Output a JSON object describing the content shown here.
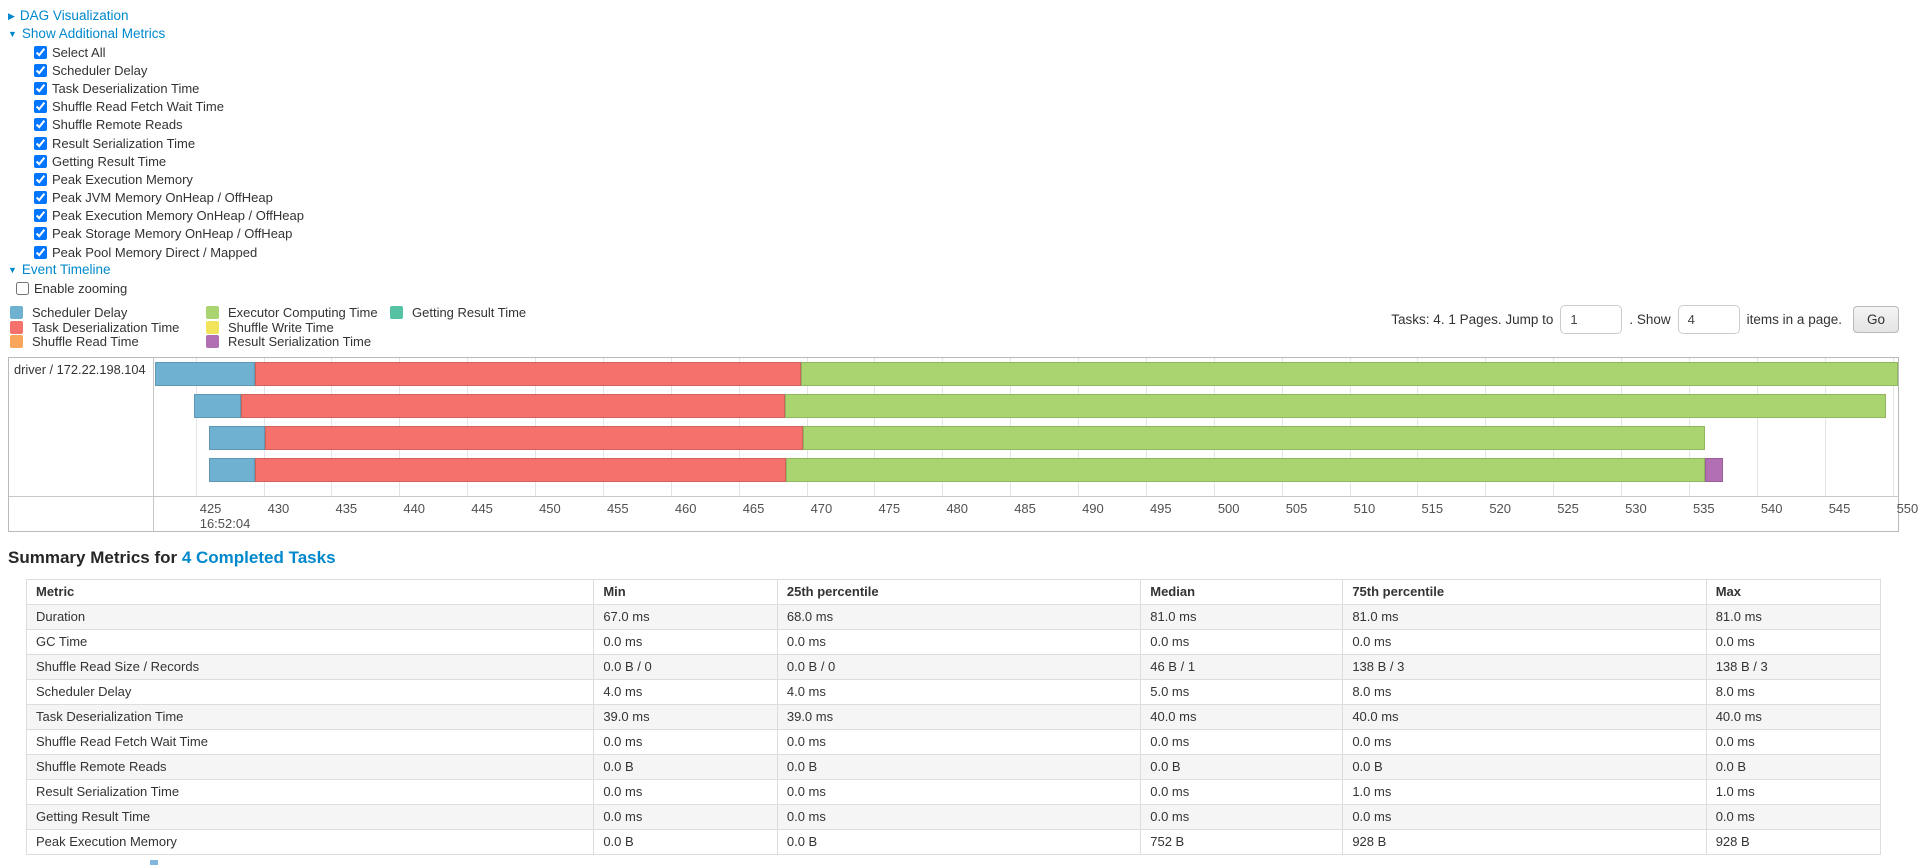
{
  "links": {
    "dag": "DAG Visualization",
    "metrics": "Show Additional Metrics",
    "timeline": "Event Timeline",
    "enable_zooming": "Enable zooming"
  },
  "additional_metrics": [
    "Select All",
    "Scheduler Delay",
    "Task Deserialization Time",
    "Shuffle Read Fetch Wait Time",
    "Shuffle Remote Reads",
    "Result Serialization Time",
    "Getting Result Time",
    "Peak Execution Memory",
    "Peak JVM Memory OnHeap / OffHeap",
    "Peak Execution Memory OnHeap / OffHeap",
    "Peak Storage Memory OnHeap / OffHeap",
    "Peak Pool Memory Direct / Mapped"
  ],
  "pagination": {
    "tasks_text": "Tasks: 4. 1 Pages. Jump to",
    "jump_value": "1",
    "mid_text": ". Show",
    "show_value": "4",
    "suffix_text": "items in a page.",
    "go_label": "Go"
  },
  "timeline": {
    "group_label": "driver / 172.22.198.104",
    "colors": {
      "scheduler_delay": "#6FB1D0",
      "task_deserialization": "#F4726B",
      "shuffle_read": "#F9A65C",
      "executor_computing": "#A9D470",
      "shuffle_write": "#F1E45B",
      "getting_result": "#56C2A4",
      "result_serialization": "#B36FB3"
    },
    "legend_columns": [
      [
        {
          "label": "Scheduler Delay",
          "type": "scheduler_delay"
        },
        {
          "label": "Task Deserialization Time",
          "type": "task_deserialization"
        },
        {
          "label": "Shuffle Read Time",
          "type": "shuffle_read"
        }
      ],
      [
        {
          "label": "Executor Computing Time",
          "type": "executor_computing"
        },
        {
          "label": "Shuffle Write Time",
          "type": "shuffle_write"
        },
        {
          "label": "Result Serialization Time",
          "type": "result_serialization"
        }
      ],
      [
        {
          "label": "Getting Result Time",
          "type": "getting_result"
        }
      ]
    ],
    "axis": {
      "min": 422.0,
      "max": 550.4,
      "ticks": [
        425,
        430,
        435,
        440,
        445,
        450,
        455,
        460,
        465,
        470,
        475,
        480,
        485,
        490,
        495,
        500,
        505,
        510,
        515,
        520,
        525,
        530,
        535,
        540,
        545,
        550
      ],
      "start_time_label": "16:52:04"
    },
    "bars": [
      {
        "segments": [
          {
            "type": "scheduler_delay",
            "start": 422.0,
            "end": 429.4
          },
          {
            "type": "task_deserialization",
            "start": 429.4,
            "end": 469.6
          },
          {
            "type": "executor_computing",
            "start": 469.6,
            "end": 550.4
          }
        ]
      },
      {
        "segments": [
          {
            "type": "scheduler_delay",
            "start": 424.9,
            "end": 428.3
          },
          {
            "type": "task_deserialization",
            "start": 428.3,
            "end": 468.4
          },
          {
            "type": "executor_computing",
            "start": 468.4,
            "end": 549.5
          }
        ]
      },
      {
        "segments": [
          {
            "type": "scheduler_delay",
            "start": 426.0,
            "end": 430.1
          },
          {
            "type": "task_deserialization",
            "start": 430.1,
            "end": 469.7
          },
          {
            "type": "executor_computing",
            "start": 469.7,
            "end": 536.2
          }
        ]
      },
      {
        "segments": [
          {
            "type": "scheduler_delay",
            "start": 426.0,
            "end": 429.4
          },
          {
            "type": "task_deserialization",
            "start": 429.4,
            "end": 468.5
          },
          {
            "type": "executor_computing",
            "start": 468.5,
            "end": 536.2
          },
          {
            "type": "result_serialization",
            "start": 536.2,
            "end": 537.5
          }
        ]
      }
    ]
  },
  "summary": {
    "title_prefix": "Summary Metrics for ",
    "title_link": "4 Completed Tasks",
    "columns": [
      "Metric",
      "Min",
      "25th percentile",
      "Median",
      "75th percentile",
      "Max"
    ],
    "rows": [
      [
        "Duration",
        "67.0 ms",
        "68.0 ms",
        "81.0 ms",
        "81.0 ms",
        "81.0 ms"
      ],
      [
        "GC Time",
        "0.0 ms",
        "0.0 ms",
        "0.0 ms",
        "0.0 ms",
        "0.0 ms"
      ],
      [
        "Shuffle Read Size / Records",
        "0.0 B / 0",
        "0.0 B / 0",
        "46 B / 1",
        "138 B / 3",
        "138 B / 3"
      ],
      [
        "Scheduler Delay",
        "4.0 ms",
        "4.0 ms",
        "5.0 ms",
        "8.0 ms",
        "8.0 ms"
      ],
      [
        "Task Deserialization Time",
        "39.0 ms",
        "39.0 ms",
        "40.0 ms",
        "40.0 ms",
        "40.0 ms"
      ],
      [
        "Shuffle Read Fetch Wait Time",
        "0.0 ms",
        "0.0 ms",
        "0.0 ms",
        "0.0 ms",
        "0.0 ms"
      ],
      [
        "Shuffle Remote Reads",
        "0.0 B",
        "0.0 B",
        "0.0 B",
        "0.0 B",
        "0.0 B"
      ],
      [
        "Result Serialization Time",
        "0.0 ms",
        "0.0 ms",
        "0.0 ms",
        "1.0 ms",
        "1.0 ms"
      ],
      [
        "Getting Result Time",
        "0.0 ms",
        "0.0 ms",
        "0.0 ms",
        "0.0 ms",
        "0.0 ms"
      ],
      [
        "Peak Execution Memory",
        "0.0 B",
        "0.0 B",
        "752 B",
        "928 B",
        "928 B"
      ]
    ]
  }
}
